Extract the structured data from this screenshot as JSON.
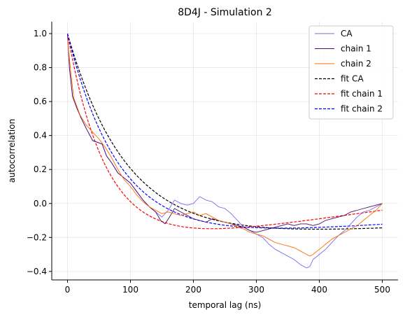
{
  "chart_data": {
    "type": "line",
    "title": "8D4J - Simulation 2",
    "xlabel": "temporal lag (ns)",
    "ylabel": "autocorrelation",
    "xlim": [
      -25,
      525
    ],
    "ylim": [
      -0.45,
      1.07
    ],
    "xticks": [
      0,
      100,
      200,
      300,
      400,
      500
    ],
    "yticks": [
      -0.4,
      -0.2,
      0.0,
      0.2,
      0.4,
      0.6,
      0.8,
      1.0
    ],
    "xtick_labels": [
      "0",
      "100",
      "200",
      "300",
      "400",
      "500"
    ],
    "ytick_labels": [
      "−0.4",
      "−0.2",
      "0.0",
      "0.2",
      "0.4",
      "0.6",
      "0.8",
      "1.0"
    ],
    "grid": true,
    "legend_position": "top-right",
    "series": [
      {
        "name": "CA",
        "color": "#7b68ee",
        "style": "solid",
        "x": [
          0,
          3,
          8,
          15,
          22,
          30,
          40,
          48,
          55,
          62,
          70,
          80,
          90,
          100,
          110,
          120,
          130,
          140,
          150,
          160,
          170,
          180,
          190,
          200,
          210,
          220,
          230,
          240,
          250,
          260,
          270,
          280,
          290,
          300,
          310,
          320,
          330,
          340,
          350,
          360,
          370,
          380,
          385,
          390,
          400,
          410,
          420,
          430,
          440,
          450,
          460,
          470,
          480,
          490,
          500
        ],
        "y": [
          1.0,
          0.8,
          0.63,
          0.56,
          0.5,
          0.44,
          0.37,
          0.36,
          0.35,
          0.28,
          0.24,
          0.18,
          0.15,
          0.12,
          0.07,
          0.02,
          -0.02,
          -0.05,
          -0.08,
          -0.04,
          0.02,
          0.0,
          -0.01,
          0.0,
          0.04,
          0.02,
          0.01,
          -0.02,
          -0.03,
          -0.06,
          -0.1,
          -0.14,
          -0.16,
          -0.18,
          -0.2,
          -0.24,
          -0.27,
          -0.29,
          -0.31,
          -0.33,
          -0.36,
          -0.38,
          -0.37,
          -0.33,
          -0.3,
          -0.27,
          -0.23,
          -0.19,
          -0.16,
          -0.12,
          -0.08,
          -0.05,
          -0.04,
          -0.02,
          0.0
        ]
      },
      {
        "name": "chain 1",
        "color": "#4b0c6b",
        "style": "solid",
        "x": [
          0,
          3,
          8,
          15,
          22,
          30,
          40,
          48,
          55,
          62,
          70,
          80,
          90,
          100,
          110,
          120,
          130,
          140,
          148,
          155,
          162,
          170,
          180,
          190,
          200,
          210,
          220,
          230,
          240,
          250,
          260,
          270,
          280,
          290,
          300,
          310,
          320,
          330,
          340,
          350,
          360,
          370,
          380,
          390,
          400,
          410,
          420,
          430,
          440,
          450,
          460,
          470,
          480,
          490,
          500
        ],
        "y": [
          1.0,
          0.8,
          0.63,
          0.56,
          0.5,
          0.44,
          0.37,
          0.36,
          0.35,
          0.28,
          0.24,
          0.18,
          0.15,
          0.12,
          0.07,
          0.02,
          -0.02,
          -0.05,
          -0.1,
          -0.12,
          -0.08,
          -0.03,
          -0.05,
          -0.07,
          -0.09,
          -0.1,
          -0.11,
          -0.09,
          -0.1,
          -0.11,
          -0.12,
          -0.13,
          -0.14,
          -0.16,
          -0.17,
          -0.16,
          -0.15,
          -0.14,
          -0.13,
          -0.12,
          -0.13,
          -0.12,
          -0.12,
          -0.13,
          -0.12,
          -0.1,
          -0.09,
          -0.08,
          -0.07,
          -0.05,
          -0.04,
          -0.03,
          -0.02,
          -0.01,
          0.0
        ]
      },
      {
        "name": "chain 2",
        "color": "#ff6a00",
        "style": "solid",
        "x": [
          0,
          5,
          10,
          20,
          30,
          40,
          50,
          60,
          70,
          80,
          90,
          100,
          110,
          120,
          130,
          140,
          150,
          160,
          170,
          180,
          190,
          200,
          210,
          220,
          230,
          240,
          250,
          260,
          270,
          280,
          290,
          300,
          310,
          320,
          330,
          340,
          350,
          360,
          370,
          380,
          385,
          390,
          400,
          410,
          420,
          430,
          440,
          450,
          460,
          470,
          480,
          490,
          500
        ],
        "y": [
          0.97,
          0.78,
          0.62,
          0.52,
          0.46,
          0.42,
          0.38,
          0.33,
          0.27,
          0.2,
          0.14,
          0.1,
          0.05,
          0.01,
          -0.02,
          -0.04,
          -0.06,
          -0.05,
          -0.06,
          -0.07,
          -0.06,
          -0.05,
          -0.07,
          -0.06,
          -0.08,
          -0.1,
          -0.11,
          -0.12,
          -0.14,
          -0.15,
          -0.17,
          -0.18,
          -0.19,
          -0.21,
          -0.23,
          -0.24,
          -0.25,
          -0.26,
          -0.28,
          -0.3,
          -0.31,
          -0.3,
          -0.27,
          -0.24,
          -0.21,
          -0.19,
          -0.17,
          -0.15,
          -0.13,
          -0.1,
          -0.07,
          -0.04,
          0.0
        ]
      },
      {
        "name": "fit CA",
        "color": "#000000",
        "style": "dashed",
        "fit": {
          "a": 1.25,
          "tau": 95,
          "c": -0.25,
          "d": 0.0002
        },
        "x_range": [
          0,
          500
        ]
      },
      {
        "name": "fit chain 1",
        "color": "#ff0000",
        "style": "dashed",
        "fit": {
          "a": 1.3,
          "tau": 62,
          "c": -0.3,
          "d": 0.00052
        },
        "x_range": [
          0,
          500
        ]
      },
      {
        "name": "fit chain 2",
        "color": "#0000ff",
        "style": "dashed",
        "fit": {
          "a": 1.25,
          "tau": 82,
          "c": -0.25,
          "d": 0.00025
        },
        "x_range": [
          0,
          500
        ]
      }
    ]
  }
}
